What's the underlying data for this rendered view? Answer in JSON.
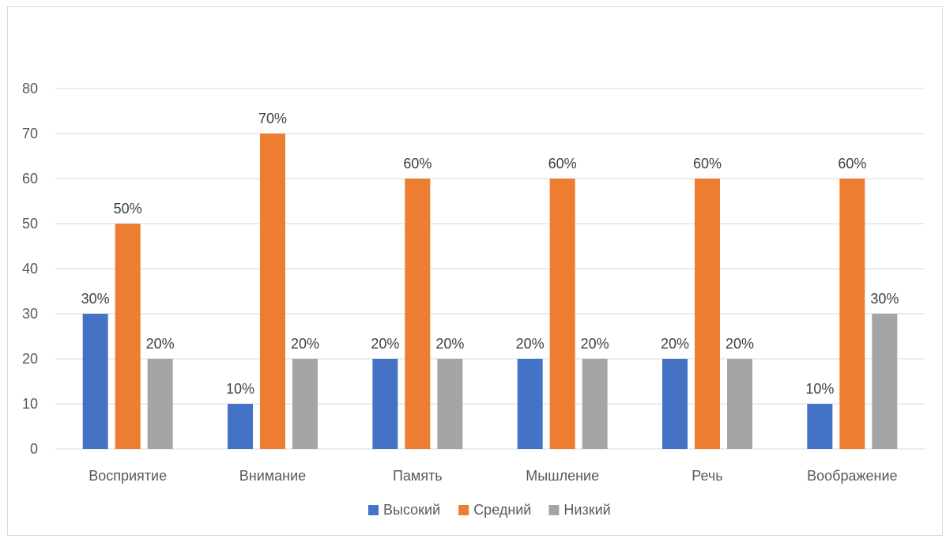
{
  "chart_data": {
    "type": "bar",
    "categories": [
      "Восприятие",
      "Внимание",
      "Память",
      "Мышление",
      "Речь",
      "Воображение"
    ],
    "series": [
      {
        "name": "Высокий",
        "color": "#4472c4",
        "values": [
          30,
          10,
          20,
          20,
          20,
          10
        ],
        "labels": [
          "30%",
          "10%",
          "20%",
          "20%",
          "20%",
          "10%"
        ]
      },
      {
        "name": "Средний",
        "color": "#ed7d31",
        "values": [
          50,
          70,
          60,
          60,
          60,
          60
        ],
        "labels": [
          "50%",
          "70%",
          "60%",
          "60%",
          "60%",
          "60%"
        ]
      },
      {
        "name": "Низкий",
        "color": "#a5a5a5",
        "values": [
          20,
          20,
          20,
          20,
          20,
          30
        ],
        "labels": [
          "20%",
          "20%",
          "20%",
          "20%",
          "20%",
          "30%"
        ]
      }
    ],
    "ylim": [
      0,
      80
    ],
    "yticks": [
      "0",
      "10",
      "20",
      "30",
      "40",
      "50",
      "60",
      "70",
      "80"
    ],
    "grid": true,
    "legend_position": "bottom"
  }
}
